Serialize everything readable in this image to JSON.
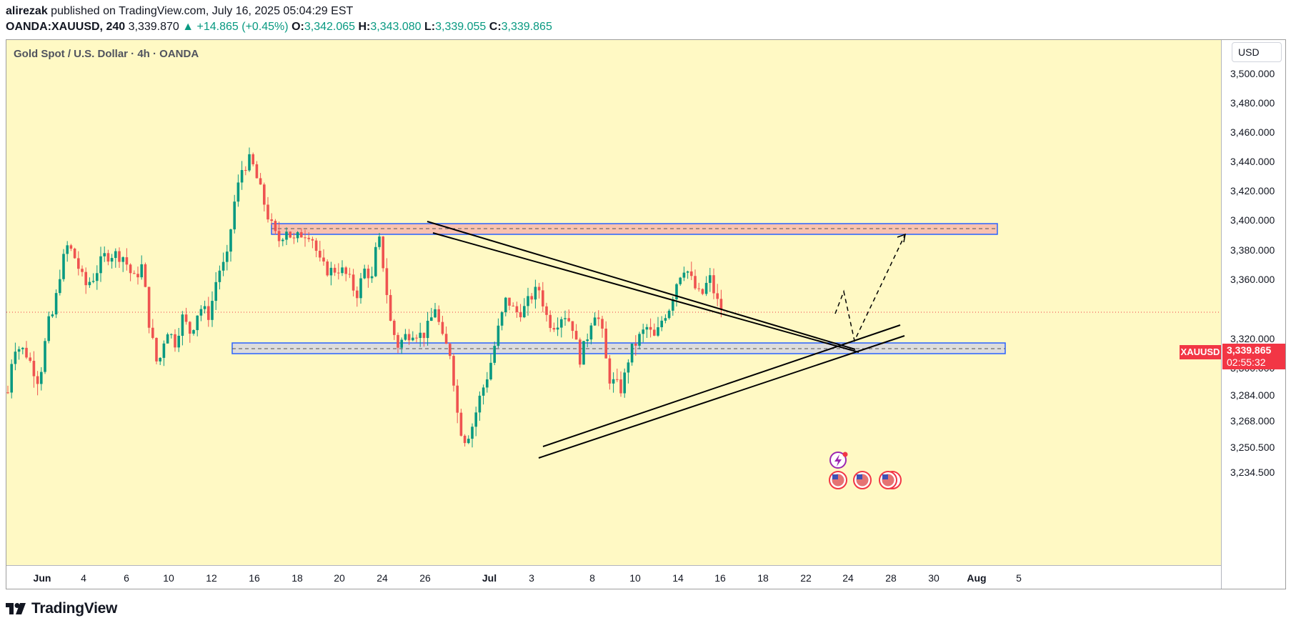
{
  "header": {
    "author": "alirezak",
    "published_text": "published on TradingView.com, July 16, 2025 05:04:29 EST",
    "symbol_interval": "OANDA:XAUUSD, 240",
    "last": "3,339.870",
    "change": "▲ +14.865 (+0.45%)",
    "o_label": "O:",
    "o": "3,342.065",
    "h_label": "H:",
    "h": "3,343.080",
    "l_label": "L:",
    "l": "3,339.055",
    "c_label": "C:",
    "c": "3,339.865"
  },
  "chart_title": "Gold Spot / U.S. Dollar · 4h · OANDA",
  "currency": "USD",
  "price_tag": {
    "symbol": "XAUUSD",
    "price": "3,339.865",
    "countdown": "02:55:32"
  },
  "branding": "TradingView",
  "colors": {
    "up": "#089981",
    "down": "#ef5350",
    "background": "#fff9c4",
    "zone_fill_red": "#f8c2b0",
    "zone_fill_gray": "#dcdcdc",
    "zone_border": "#2962ff",
    "last_price": "#f23645"
  },
  "icons": [
    "lightning-event-icon",
    "us-flag-event-icon",
    "us-flag-event-icon",
    "us-flag-event-icon"
  ],
  "chart_data": {
    "type": "candlestick",
    "symbol": "XAUUSD",
    "interval": "4h",
    "y_ticks": [
      "3,500.000",
      "3,480.000",
      "3,460.000",
      "3,440.000",
      "3,420.000",
      "3,400.000",
      "3,380.000",
      "3,360.000",
      "3,320.000",
      "3,300.000",
      "3,284.000",
      "3,268.000",
      "3,250.500",
      "3,234.500"
    ],
    "y_tick_values": [
      3500,
      3480,
      3460,
      3440,
      3420,
      3400,
      3380,
      3360,
      3320,
      3300,
      3284,
      3268,
      3250.5,
      3234.5
    ],
    "x_ticks": [
      {
        "label": "Jun",
        "bold": true
      },
      {
        "label": "4"
      },
      {
        "label": "6"
      },
      {
        "label": "10"
      },
      {
        "label": "12"
      },
      {
        "label": "16"
      },
      {
        "label": "18"
      },
      {
        "label": "20"
      },
      {
        "label": "24"
      },
      {
        "label": "26"
      },
      {
        "label": "Jul",
        "bold": true
      },
      {
        "label": "3"
      },
      {
        "label": "8"
      },
      {
        "label": "10"
      },
      {
        "label": "14"
      },
      {
        "label": "16"
      },
      {
        "label": "18"
      },
      {
        "label": "22"
      },
      {
        "label": "24"
      },
      {
        "label": "28"
      },
      {
        "label": "30"
      },
      {
        "label": "Aug",
        "bold": true
      },
      {
        "label": "5"
      }
    ],
    "last_price": 3339.865,
    "key_points": [
      {
        "label": "start",
        "close": 3290
      },
      {
        "label": "June high",
        "high": 3451
      },
      {
        "label": "June 30 low",
        "low": 3247
      },
      {
        "label": "July 9 low",
        "low": 3283
      },
      {
        "label": "July 14 high",
        "high": 3375
      },
      {
        "label": "last",
        "close": 3339.865
      }
    ],
    "zones": [
      {
        "name": "resistance",
        "low": 3391,
        "high": 3398
      },
      {
        "name": "support",
        "low": 3314,
        "high": 3321
      }
    ],
    "drawings": [
      "descending trendlines from 3,400 area",
      "ascending trendlines from 3,247 low",
      "dashed projected path to ~3,392"
    ]
  }
}
